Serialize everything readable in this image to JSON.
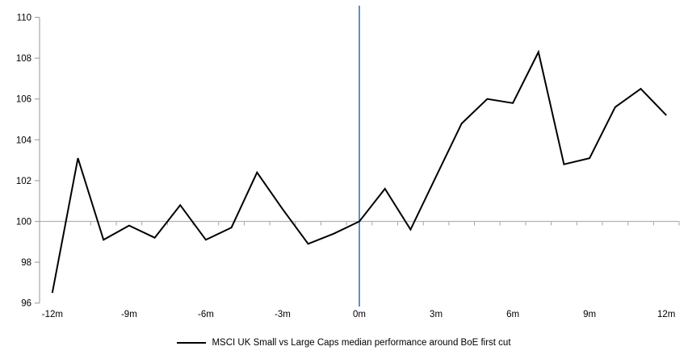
{
  "page": {
    "background": "#ffffff"
  },
  "legend": {
    "label": "MSCI UK Small vs Large Caps median performance around BoE first cut",
    "swatch_color": "#000000"
  },
  "chart_data": {
    "type": "line",
    "title": "",
    "xlabel": "",
    "ylabel": "",
    "months": [
      -12,
      -11,
      -10,
      -9,
      -8,
      -7,
      -6,
      -5,
      -4,
      -3,
      -2,
      -1,
      0,
      1,
      2,
      3,
      4,
      5,
      6,
      7,
      8,
      9,
      10,
      11,
      12
    ],
    "series": [
      {
        "name": "MSCI UK Small vs Large Caps median performance around BoE first cut",
        "color": "#000000",
        "values": [
          96.5,
          103.1,
          99.1,
          99.8,
          99.2,
          100.8,
          99.1,
          99.7,
          102.4,
          100.6,
          98.9,
          99.4,
          100.0,
          101.6,
          99.6,
          102.2,
          104.8,
          106.0,
          105.8,
          108.3,
          102.8,
          103.1,
          105.6,
          106.5,
          105.2
        ]
      }
    ],
    "y_ticks": [
      96,
      98,
      100,
      102,
      104,
      106,
      108,
      110
    ],
    "x_tick_labels": [
      {
        "x": -12,
        "label": "-12m"
      },
      {
        "x": -9,
        "label": "-9m"
      },
      {
        "x": -6,
        "label": "-6m"
      },
      {
        "x": -3,
        "label": "-3m"
      },
      {
        "x": 0,
        "label": "0m"
      },
      {
        "x": 3,
        "label": "3m"
      },
      {
        "x": 6,
        "label": "6m"
      },
      {
        "x": 9,
        "label": "9m"
      },
      {
        "x": 12,
        "label": "12m"
      }
    ],
    "ylim": [
      96,
      110
    ],
    "xlim": [
      -12.5,
      12.5
    ],
    "baseline": {
      "value": 100,
      "color": "#b3b3b3"
    },
    "event_line": {
      "x": 0,
      "color": "#4a86c5"
    },
    "axis_color": "#a6a6a6",
    "grid": "off",
    "legend_position": "bottom"
  }
}
